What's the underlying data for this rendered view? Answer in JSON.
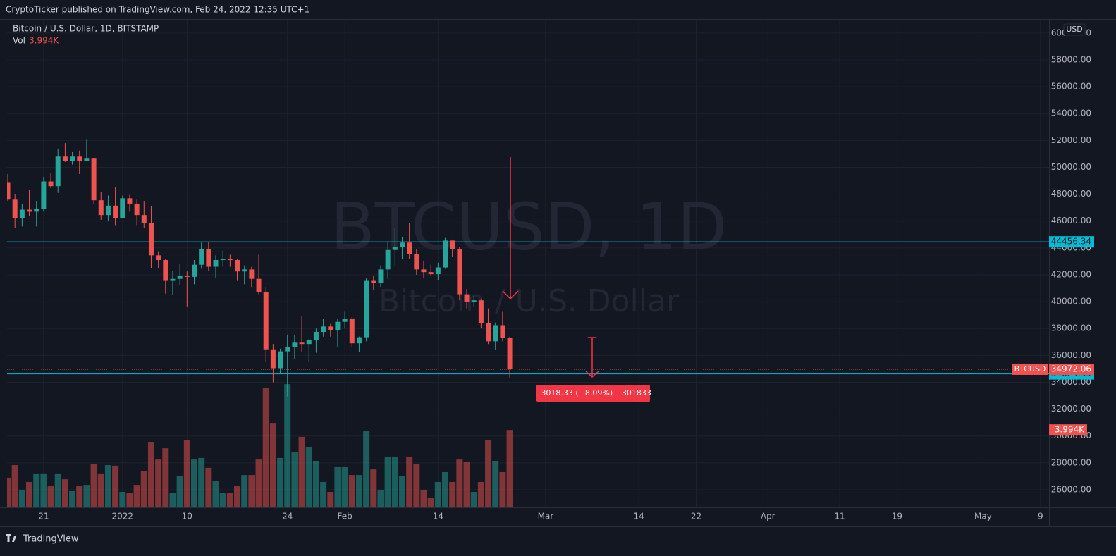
{
  "header": {
    "title": "CryptoTicker published on TradingView.com, Feb 24, 2022 12:35 UTC+1",
    "brand": "TradingView"
  },
  "chart_data": {
    "type": "candlestick",
    "title": "Bitcoin / U.S. Dollar, 1D, BITSTAMP",
    "volume_name": "Vol",
    "volume_value_label": "3.994K",
    "watermark": "BTCUSD, 1D",
    "watermark_subtitle": "Bitcoin / U.S. Dollar",
    "currency": "USD",
    "last_price_name": "BTCUSD",
    "measurement": "−3018.33 (−8.09%) −301833",
    "up_color": "#26a69a",
    "down_color": "#ef5350",
    "open": [
      48900,
      47600,
      46200,
      46850,
      46700,
      46900,
      48950,
      48600,
      50800,
      50450,
      50800,
      50450,
      50700,
      47550,
      46450,
      47150,
      46200,
      47700,
      47300,
      46450,
      45850,
      43450,
      43100,
      41550,
      41700,
      41900,
      41850,
      42750,
      43900,
      42600,
      43100,
      43200,
      43100,
      42250,
      42400,
      41700,
      40700,
      36450,
      35050,
      36300,
      36650,
      36950,
      36850,
      37150,
      37750,
      38150,
      37900,
      38500,
      38750,
      36900,
      37350,
      41550,
      41400,
      42400,
      43850,
      44050,
      44400,
      43550,
      42400,
      42200,
      42050,
      42550,
      44550,
      43900,
      40550,
      40000,
      40100,
      38400,
      37050,
      38250,
      37300
    ],
    "high": [
      49500,
      48000,
      47300,
      48300,
      47500,
      49300,
      49550,
      51400,
      51800,
      51150,
      51250,
      52100,
      50700,
      48150,
      47900,
      48550,
      47900,
      47950,
      47600,
      47500,
      47100,
      43750,
      43150,
      42300,
      42800,
      42250,
      43100,
      44400,
      44450,
      43450,
      43800,
      43500,
      43200,
      42700,
      42600,
      43500,
      41100,
      36850,
      36500,
      37550,
      37550,
      38900,
      37250,
      38000,
      38700,
      38350,
      38750,
      39250,
      38850,
      37400,
      41750,
      41950,
      42700,
      44500,
      45500,
      44800,
      45850,
      43900,
      43000,
      42750,
      42900,
      44750,
      44550,
      44100,
      40950,
      40450,
      40150,
      39500,
      38450,
      39250,
      37400
    ],
    "low": [
      47500,
      45500,
      45600,
      46400,
      45600,
      46700,
      48450,
      48100,
      50400,
      50200,
      49500,
      50450,
      47300,
      46100,
      46000,
      45700,
      46200,
      46700,
      45700,
      45500,
      42500,
      42500,
      40600,
      40500,
      41250,
      39650,
      41300,
      42450,
      42300,
      41800,
      42600,
      42600,
      41550,
      41300,
      41100,
      40550,
      35500,
      34000,
      34700,
      32950,
      35700,
      36250,
      35500,
      36200,
      37400,
      37400,
      36650,
      38000,
      36600,
      36250,
      37050,
      40900,
      41100,
      41700,
      42700,
      43200,
      43200,
      42000,
      41750,
      41900,
      41600,
      42450,
      43350,
      40100,
      39500,
      39650,
      38050,
      36850,
      36400,
      37050,
      34350
    ],
    "close": [
      47600,
      46200,
      46850,
      46700,
      46900,
      48950,
      48600,
      50800,
      50450,
      50800,
      50450,
      50700,
      47550,
      46450,
      47150,
      46200,
      47700,
      47300,
      46450,
      45850,
      43450,
      43100,
      41550,
      41700,
      41900,
      41850,
      42750,
      43900,
      42600,
      43100,
      43200,
      43100,
      42250,
      42400,
      41700,
      40700,
      36450,
      35050,
      36300,
      36650,
      36950,
      36850,
      37150,
      37750,
      38150,
      37900,
      38500,
      38750,
      36900,
      37350,
      41550,
      41400,
      42400,
      43850,
      44050,
      44400,
      43550,
      42400,
      42200,
      42050,
      42550,
      44550,
      43900,
      40550,
      40000,
      40100,
      38400,
      37050,
      38250,
      37300,
      34972.06
    ],
    "volume": [
      1.53,
      2.18,
      0.91,
      1.31,
      1.75,
      1.75,
      1.09,
      1.75,
      1.45,
      0.84,
      1.09,
      1.16,
      2.25,
      1.75,
      2.18,
      2.15,
      0.8,
      0.73,
      1.16,
      1.89,
      3.38,
      2.47,
      3.05,
      0.73,
      1.6,
      3.49,
      2.47,
      2.55,
      2.04,
      1.38,
      0.73,
      0.73,
      1.09,
      1.67,
      1.67,
      2.47,
      6.18,
      4.36,
      2.55,
      6.36,
      2.84,
      3.64,
      3.13,
      2.4,
      1.31,
      0.8,
      2.11,
      2.11,
      1.67,
      1.67,
      3.93,
      1.96,
      0.91,
      2.62,
      2.62,
      1.6,
      2.62,
      2.25,
      0.91,
      0.51,
      1.31,
      1.82,
      1.31,
      2.47,
      2.33,
      0.8,
      1.31,
      3.49,
      2.4,
      1.82,
      3.994
    ],
    "vlim": [
      0,
      8
    ],
    "xlim": [
      -0.1,
      145.2
    ],
    "xticks": [
      {
        "value": 5,
        "label": "21"
      },
      {
        "value": 16,
        "label": "2022"
      },
      {
        "value": 25,
        "label": "10"
      },
      {
        "value": 39,
        "label": "24"
      },
      {
        "value": 47,
        "label": "Feb"
      },
      {
        "value": 60,
        "label": "14"
      },
      {
        "value": 75,
        "label": "Mar"
      },
      {
        "value": 88,
        "label": "14"
      },
      {
        "value": 96,
        "label": "22"
      },
      {
        "value": 106,
        "label": "Apr"
      },
      {
        "value": 116,
        "label": "11"
      },
      {
        "value": 124,
        "label": "19"
      },
      {
        "value": 136,
        "label": "May"
      },
      {
        "value": 144,
        "label": "9"
      }
    ],
    "ylim": [
      24688,
      60990
    ],
    "yticks": [
      {
        "value": 26000,
        "label": "26000.00"
      },
      {
        "value": 28000,
        "label": "28000.00"
      },
      {
        "value": 30000,
        "label": "30000.00"
      },
      {
        "value": 32000,
        "label": "32000.00"
      },
      {
        "value": 34000,
        "label": "34000.00"
      },
      {
        "value": 36000,
        "label": "36000.00"
      },
      {
        "value": 38000,
        "label": "38000.00"
      },
      {
        "value": 40000,
        "label": "40000.00"
      },
      {
        "value": 42000,
        "label": "42000.00"
      },
      {
        "value": 44000,
        "label": "44000.00"
      },
      {
        "value": 46000,
        "label": "46000.00"
      },
      {
        "value": 48000,
        "label": "48000.00"
      },
      {
        "value": 50000,
        "label": "50000.00"
      },
      {
        "value": 52000,
        "label": "52000.00"
      },
      {
        "value": 54000,
        "label": "54000.00"
      },
      {
        "value": 56000,
        "label": "56000.00"
      },
      {
        "value": 58000,
        "label": "58000.00"
      },
      {
        "value": 60000,
        "label": "60000.00"
      }
    ],
    "hlines": [
      {
        "value": 44456.34,
        "color": "#00bcd4"
      },
      {
        "value": 34624.59,
        "color": "#00bcd4"
      }
    ],
    "grid": true
  }
}
